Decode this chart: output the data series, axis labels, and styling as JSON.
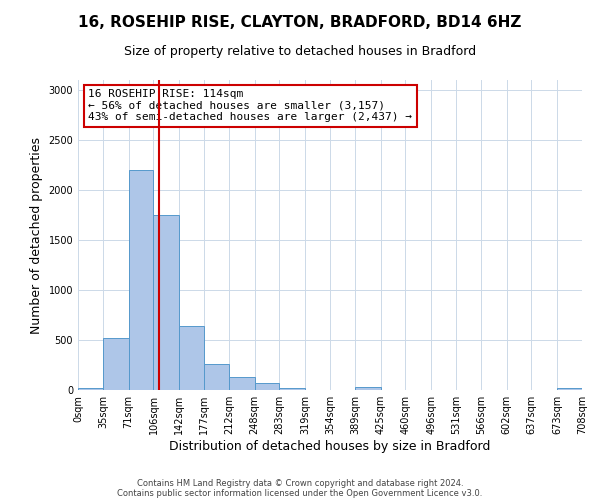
{
  "title": "16, ROSEHIP RISE, CLAYTON, BRADFORD, BD14 6HZ",
  "subtitle": "Size of property relative to detached houses in Bradford",
  "xlabel": "Distribution of detached houses by size in Bradford",
  "ylabel": "Number of detached properties",
  "bin_edges": [
    0,
    35,
    71,
    106,
    142,
    177,
    212,
    248,
    283,
    319,
    354,
    389,
    425,
    460,
    496,
    531,
    566,
    602,
    637,
    673,
    708
  ],
  "bar_values": [
    20,
    520,
    2200,
    1750,
    640,
    260,
    130,
    70,
    25,
    0,
    0,
    35,
    0,
    0,
    0,
    0,
    0,
    0,
    0,
    20
  ],
  "bar_color": "#aec6e8",
  "bar_edge_color": "#5599cc",
  "vline_x": 114,
  "vline_color": "#cc0000",
  "ylim": [
    0,
    3100
  ],
  "yticks": [
    0,
    500,
    1000,
    1500,
    2000,
    2500,
    3000
  ],
  "annotation_title": "16 ROSEHIP RISE: 114sqm",
  "annotation_line1": "← 56% of detached houses are smaller (3,157)",
  "annotation_line2": "43% of semi-detached houses are larger (2,437) →",
  "annotation_box_color": "#ffffff",
  "annotation_box_edge": "#cc0000",
  "footer1": "Contains HM Land Registry data © Crown copyright and database right 2024.",
  "footer2": "Contains public sector information licensed under the Open Government Licence v3.0.",
  "background_color": "#ffffff",
  "grid_color": "#ccd9e8",
  "title_fontsize": 11,
  "subtitle_fontsize": 9,
  "ylabel_fontsize": 9,
  "xlabel_fontsize": 9,
  "tick_fontsize": 7,
  "footer_fontsize": 6,
  "annot_fontsize": 8
}
